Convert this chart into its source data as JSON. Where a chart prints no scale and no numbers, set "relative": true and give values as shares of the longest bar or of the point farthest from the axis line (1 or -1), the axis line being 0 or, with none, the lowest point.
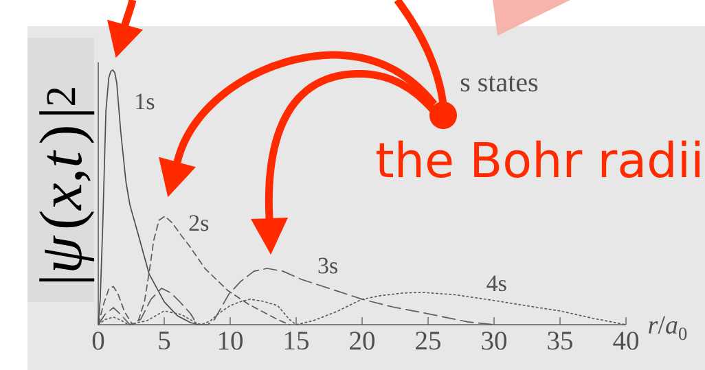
{
  "chart_data": {
    "type": "line",
    "relative": true,
    "xlabel": "*r*/*a*$_{0}$",
    "ylabel": "|*ψ*(*x*,*t*)|$^{2}$",
    "xlim": [
      0,
      40
    ],
    "xticks": [
      0,
      5,
      10,
      15,
      20,
      25,
      30,
      35,
      40
    ],
    "annotations": [
      "s states",
      "the Bohr radii"
    ],
    "series": [
      {
        "name": "1s",
        "color": "#4d4d4d",
        "line_style": "solid",
        "x": [
          0,
          0.15,
          0.34,
          0.58,
          0.8,
          0.95,
          1.1,
          1.25,
          1.4,
          1.7,
          2.1,
          2.4,
          3,
          3.85,
          5,
          6,
          7,
          7.6
        ],
        "values": [
          0,
          0.1,
          0.39,
          0.84,
          0.97,
          0.995,
          1,
          0.99,
          0.95,
          0.76,
          0.56,
          0.47,
          0.36,
          0.2,
          0.09,
          0.035,
          0.008,
          0
        ]
      },
      {
        "name": "2s",
        "color": "#5c5c5c",
        "line_style": "dashed",
        "x": [
          0,
          0.4,
          0.8,
          1.15,
          1.5,
          2,
          2.6,
          3,
          3.5,
          3.9,
          4.2,
          4.6,
          5.05,
          5.6,
          6.3,
          6.9,
          8.1,
          9.8,
          11.4,
          13.6,
          14.5
        ],
        "values": [
          0,
          0.08,
          0.14,
          0.15,
          0.12,
          0.05,
          0,
          0.01,
          0.09,
          0.22,
          0.33,
          0.41,
          0.426,
          0.4,
          0.35,
          0.31,
          0.22,
          0.135,
          0.08,
          0.02,
          0
        ]
      },
      {
        "name": "3s",
        "color": "#5c5c5c",
        "line_style": "dashed",
        "x": [
          0,
          0.5,
          1.15,
          1.7,
          2.4,
          3.2,
          4,
          4.8,
          5.5,
          6.2,
          7,
          7.5,
          8.3,
          8.8,
          9.9,
          10.8,
          11.8,
          12.8,
          14,
          15.4,
          17,
          20,
          22.3,
          25,
          28,
          30
        ],
        "values": [
          0,
          0.04,
          0.067,
          0.04,
          0,
          0.02,
          0.1,
          0.143,
          0.125,
          0.089,
          0.043,
          0,
          0,
          0.02,
          0.12,
          0.17,
          0.21,
          0.221,
          0.21,
          0.178,
          0.151,
          0.1,
          0.07,
          0.043,
          0.011,
          0
        ]
      },
      {
        "name": "4s",
        "color": "#5c5c5c",
        "line_style": "dotted",
        "x": [
          0,
          0.5,
          1.15,
          1.7,
          2.3,
          3,
          3.7,
          5,
          6.3,
          7.3,
          7.8,
          8.5,
          9.1,
          10,
          10.7,
          11.5,
          12.5,
          13.6,
          14.5,
          15,
          16.3,
          18,
          20,
          21.5,
          23,
          24.5,
          27,
          30,
          33,
          35,
          37.6,
          40
        ],
        "values": [
          0,
          0.02,
          0.03,
          0.018,
          0,
          0.008,
          0.016,
          0.054,
          0.04,
          0.01,
          0,
          0.015,
          0.043,
          0.075,
          0.089,
          0.1,
          0.092,
          0.075,
          0.02,
          0,
          0.016,
          0.05,
          0.1,
          0.115,
          0.124,
          0.127,
          0.118,
          0.095,
          0.07,
          0.054,
          0.024,
          0
        ]
      }
    ]
  }
}
